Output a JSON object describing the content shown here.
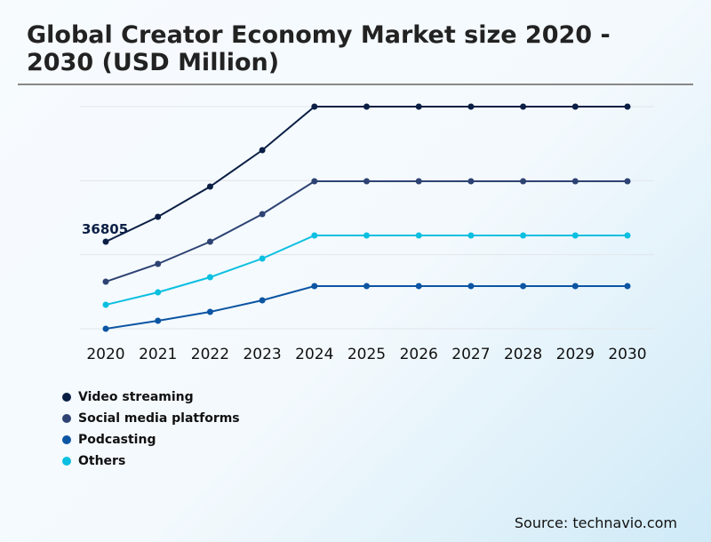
{
  "chart_data": {
    "type": "line",
    "title": "Global Creator Economy Market size 2020 - 2030 (USD Million)",
    "categories": [
      "2020",
      "2021",
      "2022",
      "2023",
      "2024",
      "2025",
      "2026",
      "2027",
      "2028",
      "2029",
      "2030"
    ],
    "series": [
      {
        "name": "Video streaming",
        "color": "#0b1f45",
        "values": [
          36805,
          47320,
          60090,
          75490,
          93900,
          93900,
          93900,
          93900,
          93900,
          93900,
          93900
        ]
      },
      {
        "name": "Social media platforms",
        "color": "#2e4374",
        "values": [
          19900,
          27420,
          36805,
          48450,
          62350,
          62350,
          62350,
          62350,
          62350,
          62350,
          62350
        ]
      },
      {
        "name": "Podcasting",
        "color": "#0b55a3",
        "values": [
          0,
          3380,
          7140,
          12020,
          18030,
          18030,
          18030,
          18030,
          18030,
          18030,
          18030
        ]
      },
      {
        "name": "Others",
        "color": "#0bbfe0",
        "values": [
          10140,
          15400,
          21780,
          29670,
          39440,
          39440,
          39440,
          39440,
          39440,
          39440,
          39440
        ]
      }
    ],
    "legend_order": [
      0,
      1,
      2,
      3
    ],
    "annotation": "36805",
    "ylim": [
      0,
      93900
    ],
    "gridlines": [
      0,
      31300,
      62600,
      93900
    ],
    "y_tick_labels": false,
    "grid": true,
    "legend_position": "bottom-left"
  },
  "source": "Source: technavio.com"
}
